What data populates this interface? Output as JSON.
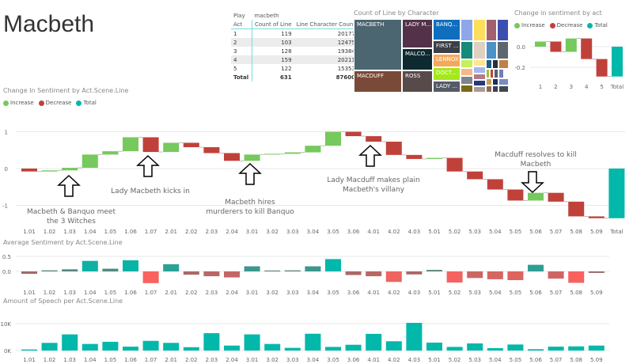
{
  "title": "Macbeth",
  "table": {
    "h1": [
      "Play",
      "macbeth",
      ""
    ],
    "h2": [
      "Act",
      "Count of Line",
      "Line Character Count"
    ],
    "rows": [
      [
        "1",
        "119",
        "20177"
      ],
      [
        "2",
        "103",
        "12475"
      ],
      [
        "3",
        "128",
        "19384"
      ],
      [
        "4",
        "159",
        "20211"
      ],
      [
        "5",
        "122",
        "15353"
      ]
    ],
    "total": [
      "Total",
      "631",
      "87600"
    ]
  },
  "treemap": {
    "title": "Count of Line by Character",
    "labels": [
      "MACBETH",
      "MACDUFF",
      "LADY M...",
      "MALCO...",
      "ROSS",
      "BANQ...",
      "FIRST ...",
      "LENNOX",
      "DOCT...",
      "LADY ..."
    ]
  },
  "legend": {
    "increase": "Increase",
    "decrease": "Decrease",
    "total": "Total"
  },
  "colors": {
    "increase": "#76c95c",
    "decrease": "#c0413a",
    "total": "#01b8aa"
  },
  "annotations": [
    "Macbeth & Banquo meet the 3 Witches",
    "Lady Macbeth kicks in",
    "Macbeth hires murderers to kill Banquo",
    "Lady Macduff makes plain Macbeth's villany",
    "Macduff resolves to kill Macbeth"
  ],
  "chart_data": [
    {
      "type": "waterfall",
      "title": "Change in sentiment by act",
      "categories": [
        "1",
        "2",
        "3",
        "4",
        "5",
        "Total"
      ],
      "values": [
        0.05,
        -0.1,
        0.13,
        -0.2,
        -0.17,
        -0.29
      ],
      "yticks": [
        "0.0",
        "-0.2"
      ],
      "ytick_values": [
        0,
        -0.2
      ]
    },
    {
      "type": "waterfall",
      "title": "Change In Sentiment by Act.Scene.Line",
      "categories": [
        "1.01",
        "1.02",
        "1.03",
        "1.04",
        "1.05",
        "1.06",
        "1.07",
        "2.01",
        "2.02",
        "2.03",
        "2.04",
        "3.01",
        "3.02",
        "3.03",
        "3.04",
        "3.05",
        "3.06",
        "4.01",
        "4.02",
        "4.03",
        "5.01",
        "5.02",
        "5.03",
        "5.04",
        "5.05",
        "5.06",
        "5.07",
        "5.08",
        "5.09",
        "Total"
      ],
      "values": [
        -0.08,
        0.03,
        0.07,
        0.36,
        0.09,
        0.38,
        -0.4,
        0.25,
        -0.12,
        -0.16,
        -0.21,
        0.17,
        0.02,
        0.04,
        0.18,
        0.38,
        -0.12,
        -0.15,
        -0.36,
        -0.11,
        0.03,
        -0.37,
        -0.21,
        -0.28,
        -0.3,
        0.21,
        -0.24,
        -0.4,
        -0.05,
        -1.35
      ],
      "yticks": [
        "1",
        "0",
        "-1"
      ],
      "ytick_values": [
        1,
        0,
        -1
      ]
    },
    {
      "type": "bar",
      "title": "Average Sentiment by Act.Scene.Line",
      "categories": [
        "1.01",
        "1.02",
        "1.03",
        "1.04",
        "1.05",
        "1.06",
        "1.07",
        "2.01",
        "2.02",
        "2.03",
        "2.04",
        "3.01",
        "3.02",
        "3.03",
        "3.04",
        "3.05",
        "3.06",
        "4.01",
        "4.02",
        "4.03",
        "5.01",
        "5.02",
        "5.03",
        "5.04",
        "5.05",
        "5.06",
        "5.07",
        "5.08",
        "5.09"
      ],
      "values": [
        -0.08,
        0.035,
        0.07,
        0.35,
        0.09,
        0.37,
        -0.39,
        0.24,
        -0.11,
        -0.16,
        -0.2,
        0.17,
        0.03,
        0.035,
        0.17,
        0.41,
        -0.12,
        -0.16,
        -0.35,
        -0.1,
        0.05,
        -0.37,
        -0.22,
        -0.26,
        -0.29,
        0.22,
        -0.24,
        -0.38,
        -0.05
      ],
      "yticks": [
        "0.5",
        "0.0"
      ],
      "ytick_values": [
        0.5,
        0
      ]
    },
    {
      "type": "bar",
      "title": "Amount of Speech per Act.Scene.Line",
      "categories": [
        "1.01",
        "1.02",
        "1.03",
        "1.04",
        "1.05",
        "1.06",
        "1.07",
        "2.01",
        "2.02",
        "2.03",
        "2.04",
        "3.01",
        "3.02",
        "3.03",
        "3.04",
        "3.05",
        "3.06",
        "4.01",
        "4.02",
        "4.03",
        "5.01",
        "5.02",
        "5.03",
        "5.04",
        "5.05",
        "5.06",
        "5.07",
        "5.08",
        "5.09"
      ],
      "values": [
        400,
        2850,
        6000,
        2450,
        3250,
        1450,
        3600,
        2850,
        1250,
        6450,
        1850,
        6000,
        2450,
        1000,
        6250,
        1350,
        2150,
        6200,
        3450,
        10300,
        2950,
        1350,
        2650,
        900,
        2250,
        500,
        1450,
        1550,
        1850
      ],
      "yticks": [
        "10K",
        "0K"
      ],
      "ytick_values": [
        10000,
        0
      ]
    }
  ]
}
